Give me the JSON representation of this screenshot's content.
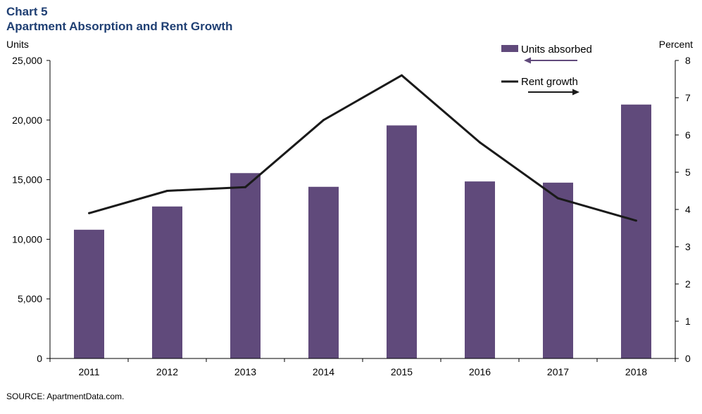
{
  "chart_data": {
    "type": "bar",
    "title": "Chart 5",
    "subtitle": "Apartment Absorption and Rent Growth",
    "categories": [
      "2011",
      "2012",
      "2013",
      "2014",
      "2015",
      "2016",
      "2017",
      "2018"
    ],
    "series": [
      {
        "name": "Units absorbed",
        "type": "bar",
        "axis": "left",
        "color": "#604a7b",
        "values": [
          10800,
          12750,
          15550,
          14400,
          19550,
          14850,
          14750,
          21300
        ]
      },
      {
        "name": "Rent growth",
        "type": "line",
        "axis": "right",
        "color": "#1a1a1a",
        "values": [
          3.9,
          4.5,
          4.6,
          6.4,
          7.6,
          5.8,
          4.3,
          3.7
        ]
      }
    ],
    "ylabel_left": "Units",
    "ylabel_right": "Percent",
    "ylim_left": [
      0,
      25000
    ],
    "ylim_right": [
      0,
      8
    ],
    "yticks_left": [
      "0",
      "5,000",
      "10,000",
      "15,000",
      "20,000",
      "25,000"
    ],
    "yticks_right": [
      "0",
      "1",
      "2",
      "3",
      "4",
      "5",
      "6",
      "7",
      "8"
    ],
    "grid": false,
    "legend_position": "top-right",
    "source": "SOURCE:  ApartmentData.com."
  }
}
